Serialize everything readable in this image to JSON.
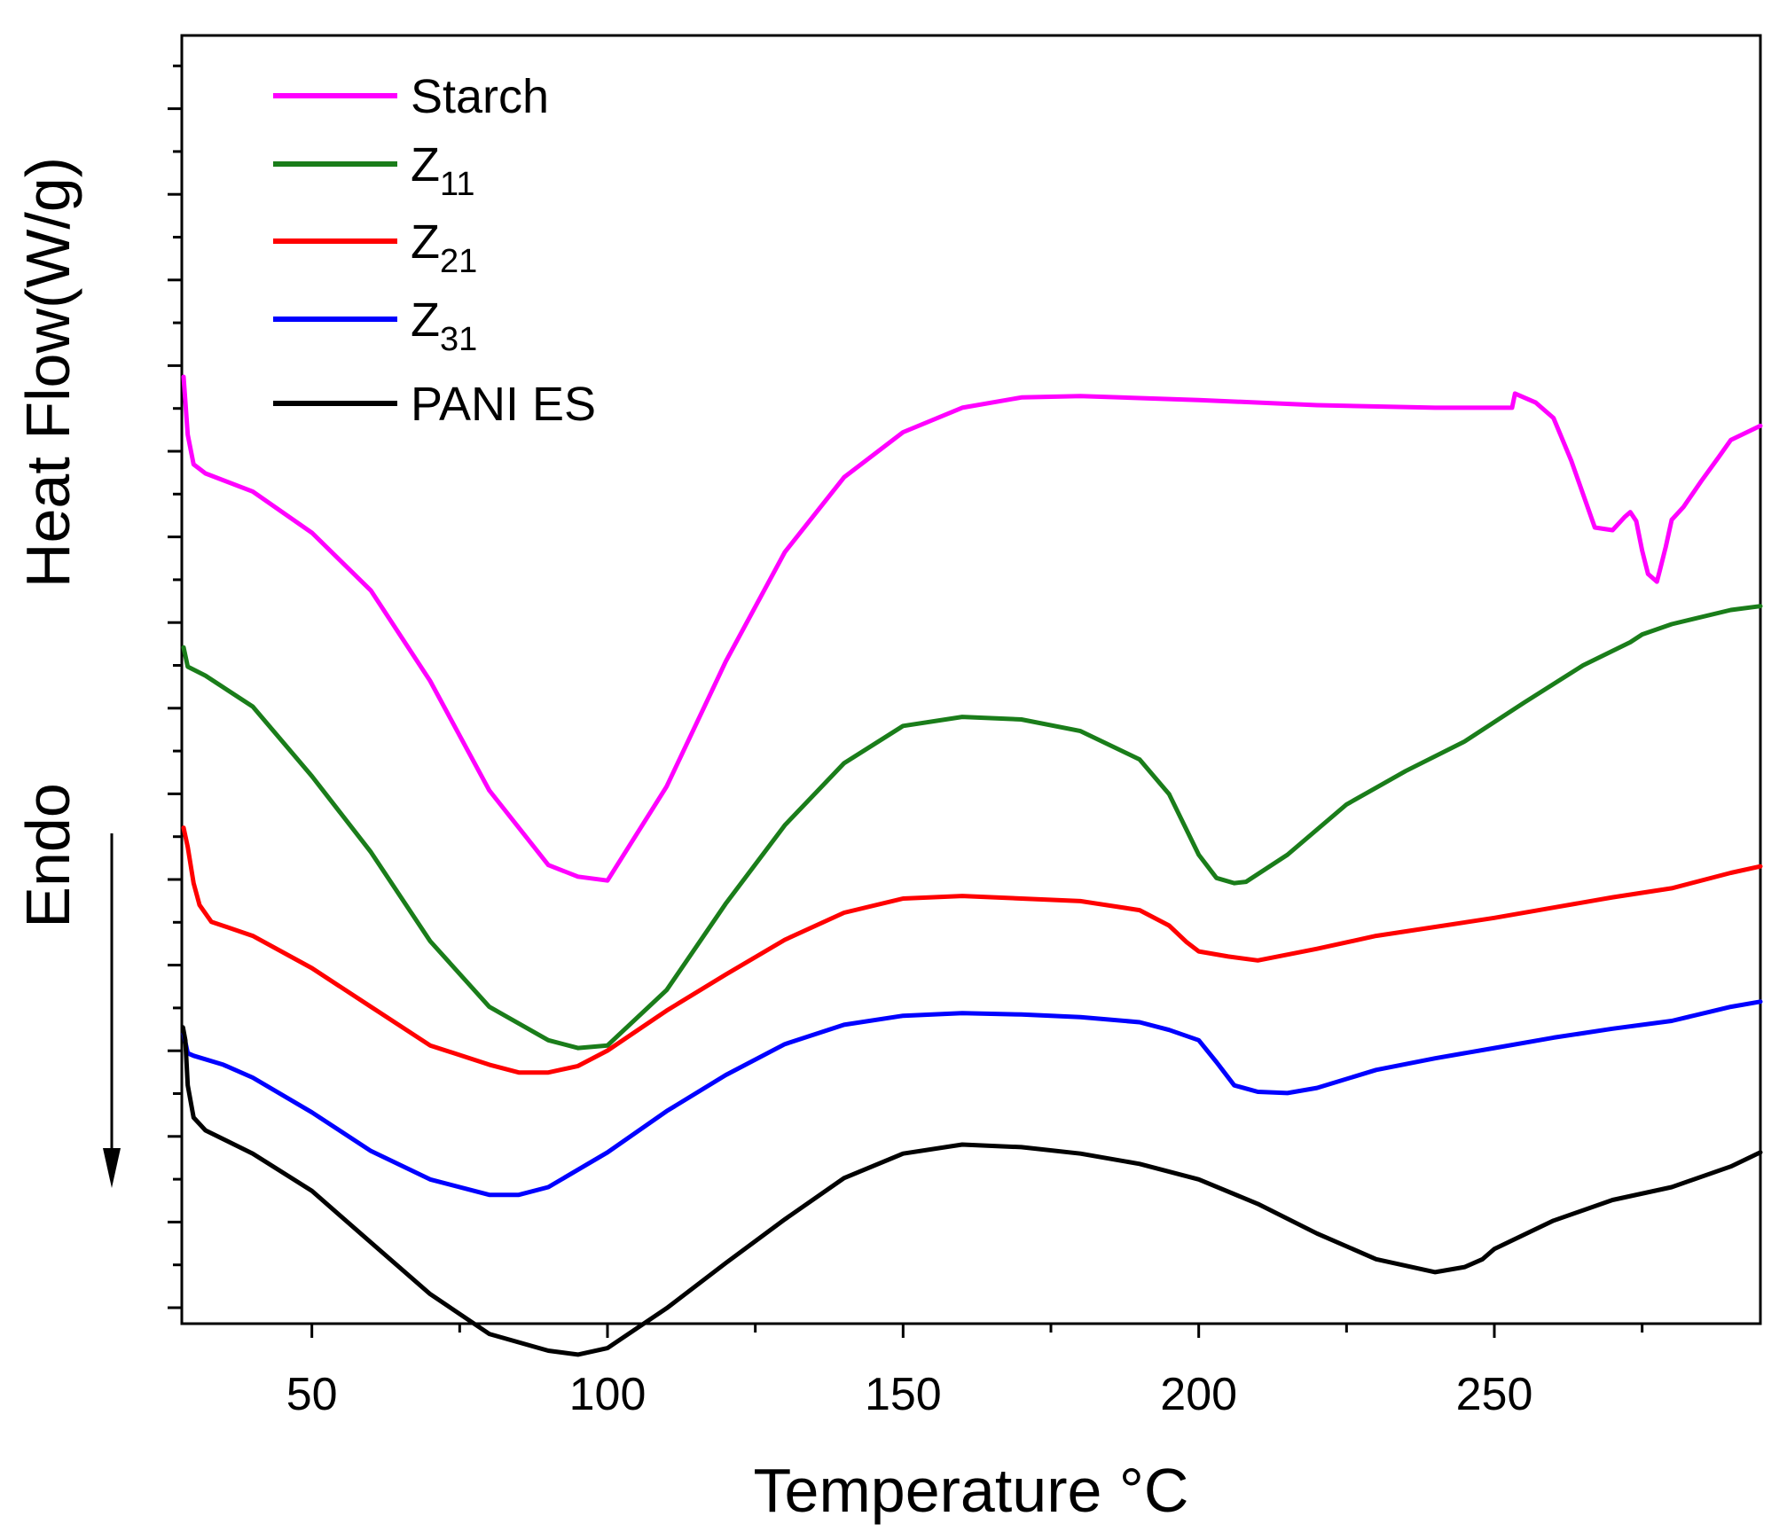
{
  "chart_data": {
    "type": "line",
    "title": "",
    "xlabel": "Temperature °C",
    "ylabel": "Heat Flow(W/g)",
    "annotation": "Endo",
    "xlim": [
      28,
      295
    ],
    "ylim": [
      0,
      100
    ],
    "x_ticks": [
      50,
      100,
      150,
      200,
      250
    ],
    "x_tick_labels": [
      "50",
      "100",
      "150",
      "200",
      "250"
    ],
    "grid": false,
    "legend_position": "top-left",
    "series": [
      {
        "name": "Starch",
        "legend_main": "Starch",
        "legend_sub": "",
        "color": "#ff00ff",
        "points": [
          [
            28.3,
            73.5
          ],
          [
            29,
            69
          ],
          [
            30,
            66.7
          ],
          [
            32,
            66
          ],
          [
            40,
            64.6
          ],
          [
            50,
            61.4
          ],
          [
            60,
            56.9
          ],
          [
            70,
            49.9
          ],
          [
            80,
            41.4
          ],
          [
            90,
            35.6
          ],
          [
            95,
            34.7
          ],
          [
            100,
            34.4
          ],
          [
            110,
            41.7
          ],
          [
            120,
            51.4
          ],
          [
            130,
            59.9
          ],
          [
            140,
            65.7
          ],
          [
            150,
            69.2
          ],
          [
            160,
            71.1
          ],
          [
            170,
            71.9
          ],
          [
            180,
            72
          ],
          [
            200,
            71.7
          ],
          [
            220,
            71.3
          ],
          [
            240,
            71.1
          ],
          [
            253,
            71.1
          ],
          [
            253.5,
            72.2
          ],
          [
            257,
            71.5
          ],
          [
            260,
            70.3
          ],
          [
            263,
            67
          ],
          [
            267,
            61.8
          ],
          [
            270,
            61.6
          ],
          [
            272,
            62.6
          ],
          [
            273,
            63
          ],
          [
            274,
            62.3
          ],
          [
            275,
            60
          ],
          [
            276,
            58.2
          ],
          [
            277.5,
            57.6
          ],
          [
            278,
            58.5
          ],
          [
            279,
            60.3
          ],
          [
            280,
            62.4
          ],
          [
            282,
            63.4
          ],
          [
            285,
            65.4
          ],
          [
            288,
            67.3
          ],
          [
            290,
            68.6
          ],
          [
            295,
            69.7
          ]
        ]
      },
      {
        "name": "Z11",
        "legend_main": "Z",
        "legend_sub": "11",
        "color": "#1a7d1a",
        "points": [
          [
            28.3,
            52.5
          ],
          [
            29,
            51
          ],
          [
            32,
            50.3
          ],
          [
            40,
            47.9
          ],
          [
            50,
            42.5
          ],
          [
            60,
            36.6
          ],
          [
            70,
            29.7
          ],
          [
            80,
            24.6
          ],
          [
            90,
            22
          ],
          [
            95,
            21.4
          ],
          [
            100,
            21.6
          ],
          [
            110,
            25.9
          ],
          [
            120,
            32.6
          ],
          [
            130,
            38.7
          ],
          [
            140,
            43.5
          ],
          [
            150,
            46.4
          ],
          [
            160,
            47.1
          ],
          [
            170,
            46.9
          ],
          [
            180,
            46
          ],
          [
            190,
            43.8
          ],
          [
            195,
            41.1
          ],
          [
            200,
            36.4
          ],
          [
            203,
            34.6
          ],
          [
            206,
            34.2
          ],
          [
            208,
            34.3
          ],
          [
            215,
            36.4
          ],
          [
            225,
            40.3
          ],
          [
            235,
            42.9
          ],
          [
            245,
            45.2
          ],
          [
            255,
            48.2
          ],
          [
            265,
            51.1
          ],
          [
            273,
            52.9
          ],
          [
            275,
            53.5
          ],
          [
            280,
            54.3
          ],
          [
            290,
            55.4
          ],
          [
            295,
            55.7
          ]
        ]
      },
      {
        "name": "Z21",
        "legend_main": "Z",
        "legend_sub": "21",
        "color": "#ff0000",
        "points": [
          [
            28.3,
            38.5
          ],
          [
            29,
            37
          ],
          [
            30,
            34.2
          ],
          [
            31,
            32.5
          ],
          [
            33,
            31.2
          ],
          [
            40,
            30.1
          ],
          [
            50,
            27.6
          ],
          [
            60,
            24.6
          ],
          [
            70,
            21.6
          ],
          [
            80,
            20.1
          ],
          [
            85,
            19.5
          ],
          [
            90,
            19.5
          ],
          [
            95,
            20
          ],
          [
            100,
            21.2
          ],
          [
            110,
            24.3
          ],
          [
            120,
            27.1
          ],
          [
            130,
            29.8
          ],
          [
            140,
            31.9
          ],
          [
            150,
            33
          ],
          [
            160,
            33.2
          ],
          [
            170,
            33
          ],
          [
            180,
            32.8
          ],
          [
            190,
            32.1
          ],
          [
            195,
            30.9
          ],
          [
            198,
            29.6
          ],
          [
            200,
            28.9
          ],
          [
            205,
            28.5
          ],
          [
            210,
            28.2
          ],
          [
            220,
            29.1
          ],
          [
            230,
            30.1
          ],
          [
            240,
            30.8
          ],
          [
            250,
            31.5
          ],
          [
            260,
            32.3
          ],
          [
            270,
            33.1
          ],
          [
            280,
            33.8
          ],
          [
            290,
            35
          ],
          [
            295,
            35.5
          ]
        ]
      },
      {
        "name": "Z31",
        "legend_main": "Z",
        "legend_sub": "31",
        "color": "#0000ff",
        "points": [
          [
            28.3,
            22.5
          ],
          [
            29,
            21
          ],
          [
            30,
            20.8
          ],
          [
            35,
            20.1
          ],
          [
            40,
            19.1
          ],
          [
            50,
            16.4
          ],
          [
            60,
            13.4
          ],
          [
            70,
            11.2
          ],
          [
            80,
            10
          ],
          [
            85,
            10
          ],
          [
            90,
            10.6
          ],
          [
            100,
            13.3
          ],
          [
            110,
            16.5
          ],
          [
            120,
            19.3
          ],
          [
            130,
            21.7
          ],
          [
            140,
            23.2
          ],
          [
            150,
            23.9
          ],
          [
            160,
            24.1
          ],
          [
            170,
            24
          ],
          [
            180,
            23.8
          ],
          [
            190,
            23.4
          ],
          [
            195,
            22.8
          ],
          [
            200,
            22
          ],
          [
            203,
            20.3
          ],
          [
            206,
            18.5
          ],
          [
            210,
            18
          ],
          [
            215,
            17.9
          ],
          [
            220,
            18.3
          ],
          [
            230,
            19.7
          ],
          [
            240,
            20.6
          ],
          [
            250,
            21.4
          ],
          [
            260,
            22.2
          ],
          [
            270,
            22.9
          ],
          [
            280,
            23.5
          ],
          [
            290,
            24.6
          ],
          [
            295,
            25
          ]
        ]
      },
      {
        "name": "PANI ES",
        "legend_main": "PANI ES",
        "legend_sub": "",
        "color": "#000000",
        "points": [
          [
            28.2,
            23
          ],
          [
            28.6,
            22
          ],
          [
            29,
            18.5
          ],
          [
            30,
            16
          ],
          [
            32,
            15
          ],
          [
            40,
            13.2
          ],
          [
            50,
            10.3
          ],
          [
            60,
            6.3
          ],
          [
            70,
            2.3
          ],
          [
            80,
            -0.8
          ],
          [
            90,
            -2.1
          ],
          [
            95,
            -2.4
          ],
          [
            100,
            -1.9
          ],
          [
            110,
            1.2
          ],
          [
            120,
            4.7
          ],
          [
            130,
            8.1
          ],
          [
            140,
            11.3
          ],
          [
            150,
            13.2
          ],
          [
            160,
            13.9
          ],
          [
            170,
            13.7
          ],
          [
            180,
            13.2
          ],
          [
            190,
            12.4
          ],
          [
            200,
            11.2
          ],
          [
            210,
            9.3
          ],
          [
            220,
            7
          ],
          [
            230,
            5
          ],
          [
            240,
            4
          ],
          [
            245,
            4.4
          ],
          [
            248,
            5
          ],
          [
            250,
            5.8
          ],
          [
            260,
            8
          ],
          [
            270,
            9.6
          ],
          [
            280,
            10.6
          ],
          [
            290,
            12.2
          ],
          [
            295,
            13.3
          ]
        ]
      }
    ]
  }
}
